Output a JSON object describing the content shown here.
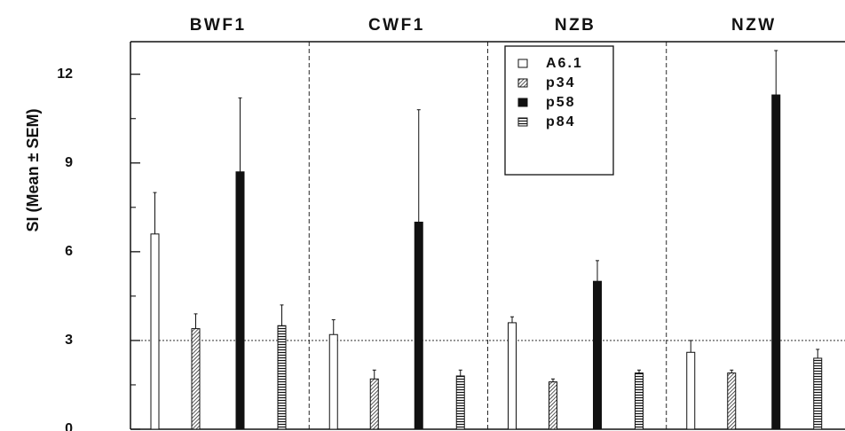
{
  "chart_data": {
    "type": "bar",
    "ylabel": "SI (Mean ± SEM)",
    "ylim": [
      0,
      13.1
    ],
    "yticks": [
      0,
      3,
      6,
      9,
      12
    ],
    "ytick_labels": [
      "0",
      "3",
      "6",
      "9",
      "12"
    ],
    "minor_yticks": [
      1.5,
      4.5,
      7.5,
      10.5
    ],
    "reference_line": 3,
    "categories": [
      "BWF1",
      "CWF1",
      "NZB",
      "NZW"
    ],
    "series": [
      {
        "name": "A6.1",
        "pattern": "open",
        "values": [
          6.6,
          3.2,
          3.6,
          2.6
        ],
        "errors": [
          1.4,
          0.5,
          0.2,
          0.4
        ]
      },
      {
        "name": "p34",
        "pattern": "diagonal",
        "values": [
          3.4,
          1.7,
          1.6,
          1.9
        ],
        "errors": [
          0.5,
          0.3,
          0.1,
          0.1
        ]
      },
      {
        "name": "p58",
        "pattern": "solid",
        "values": [
          8.7,
          7.0,
          5.0,
          11.3
        ],
        "errors": [
          2.5,
          3.8,
          0.7,
          1.5
        ]
      },
      {
        "name": "p84",
        "pattern": "horizontal",
        "values": [
          3.5,
          1.8,
          1.9,
          2.4
        ],
        "errors": [
          0.7,
          0.2,
          0.1,
          0.3
        ]
      }
    ],
    "grid": false,
    "legend_position": "top-right",
    "colors": {
      "ink": "#111111",
      "background": "#ffffff"
    }
  }
}
